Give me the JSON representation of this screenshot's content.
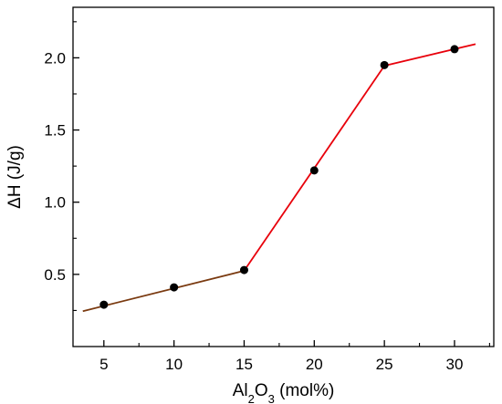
{
  "chart_data": {
    "type": "scatter",
    "title": "",
    "xlabel": {
      "base": "Al",
      "sub1": "2",
      "mid": "O",
      "sub2": "3",
      "rest": " (mol%)"
    },
    "ylabel": "ΔH (J/g)",
    "xlim": [
      2.8,
      32.8
    ],
    "ylim": [
      0.0,
      2.35
    ],
    "xticks": [
      5,
      10,
      15,
      20,
      25,
      30
    ],
    "xtick_labels": [
      "5",
      "10",
      "15",
      "20",
      "25",
      "30"
    ],
    "yticks": [
      0.5,
      1.0,
      1.5,
      2.0
    ],
    "ytick_labels": [
      "0.5",
      "1.0",
      "1.5",
      "2.0"
    ],
    "grid": false,
    "points": {
      "x": [
        5,
        10,
        15,
        20,
        25,
        30
      ],
      "y": [
        0.29,
        0.41,
        0.53,
        1.22,
        1.95,
        2.06
      ],
      "color": "#000000"
    },
    "fit_lines": [
      {
        "x": [
          3.5,
          15
        ],
        "y": [
          0.245,
          0.525
        ],
        "color": "#7a3a10"
      },
      {
        "x": [
          15,
          25
        ],
        "y": [
          0.525,
          1.945
        ],
        "color": "#e8000b"
      },
      {
        "x": [
          25,
          31.5
        ],
        "y": [
          1.945,
          2.095
        ],
        "color": "#e8000b"
      }
    ]
  }
}
